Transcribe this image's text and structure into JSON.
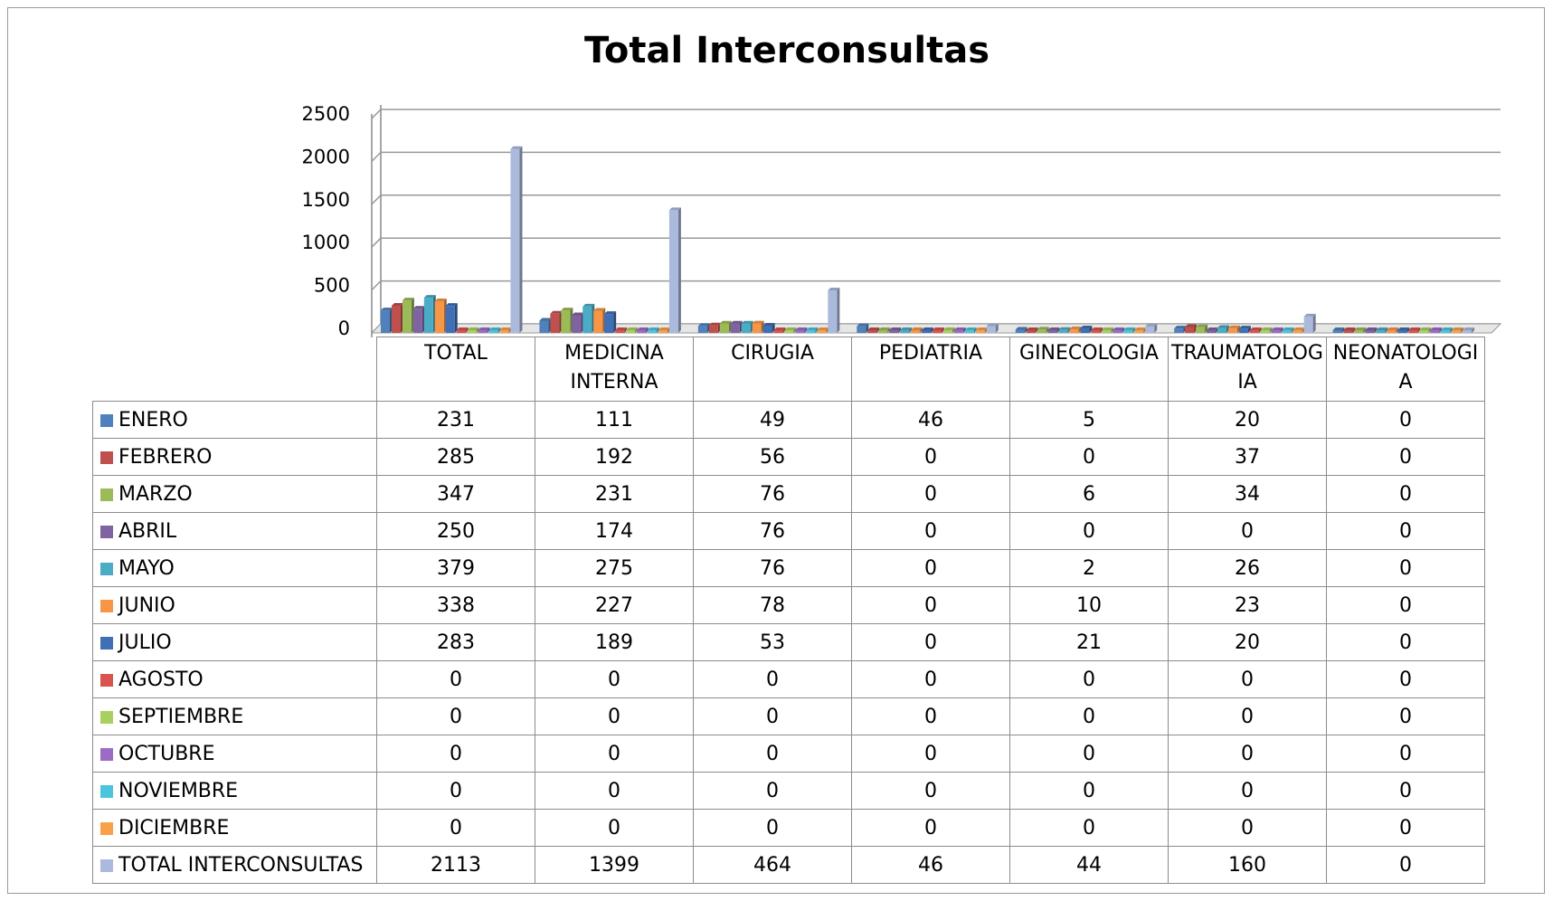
{
  "chart_data": {
    "type": "bar",
    "title": "Total Interconsultas",
    "categories": [
      "TOTAL",
      "MEDICINA INTERNA",
      "CIRUGIA",
      "PEDIATRIA",
      "GINECOLOGIA",
      "TRAUMATOLOGIA",
      "NEONATOLOGIA"
    ],
    "ylim": [
      0,
      2500
    ],
    "yticks": [
      0,
      500,
      1000,
      1500,
      2000,
      2500
    ],
    "grid": true,
    "series": [
      {
        "name": "ENERO",
        "color": "#4f81bd",
        "values": [
          231,
          111,
          49,
          46,
          5,
          20,
          0
        ]
      },
      {
        "name": "FEBRERO",
        "color": "#c0504d",
        "values": [
          285,
          192,
          56,
          0,
          0,
          37,
          0
        ]
      },
      {
        "name": "MARZO",
        "color": "#9bbb59",
        "values": [
          347,
          231,
          76,
          0,
          6,
          34,
          0
        ]
      },
      {
        "name": "ABRIL",
        "color": "#8064a2",
        "values": [
          250,
          174,
          76,
          0,
          0,
          0,
          0
        ]
      },
      {
        "name": "MAYO",
        "color": "#4bacc6",
        "values": [
          379,
          275,
          76,
          0,
          2,
          26,
          0
        ]
      },
      {
        "name": "JUNIO",
        "color": "#f79646",
        "values": [
          338,
          227,
          78,
          0,
          10,
          23,
          0
        ]
      },
      {
        "name": "JULIO",
        "color": "#3f6fb5",
        "values": [
          283,
          189,
          53,
          0,
          21,
          20,
          0
        ]
      },
      {
        "name": "AGOSTO",
        "color": "#d9534f",
        "values": [
          0,
          0,
          0,
          0,
          0,
          0,
          0
        ]
      },
      {
        "name": "SEPTIEMBRE",
        "color": "#a9d05f",
        "values": [
          0,
          0,
          0,
          0,
          0,
          0,
          0
        ]
      },
      {
        "name": "OCTUBRE",
        "color": "#9b6cc4",
        "values": [
          0,
          0,
          0,
          0,
          0,
          0,
          0
        ]
      },
      {
        "name": "NOVIEMBRE",
        "color": "#4bc4dc",
        "values": [
          0,
          0,
          0,
          0,
          0,
          0,
          0
        ]
      },
      {
        "name": "DICIEMBRE",
        "color": "#f9a04a",
        "values": [
          0,
          0,
          0,
          0,
          0,
          0,
          0
        ]
      },
      {
        "name": "TOTAL INTERCONSULTAS",
        "color": "#aab9dc",
        "values": [
          2113,
          1399,
          464,
          46,
          44,
          160,
          0
        ]
      }
    ]
  }
}
